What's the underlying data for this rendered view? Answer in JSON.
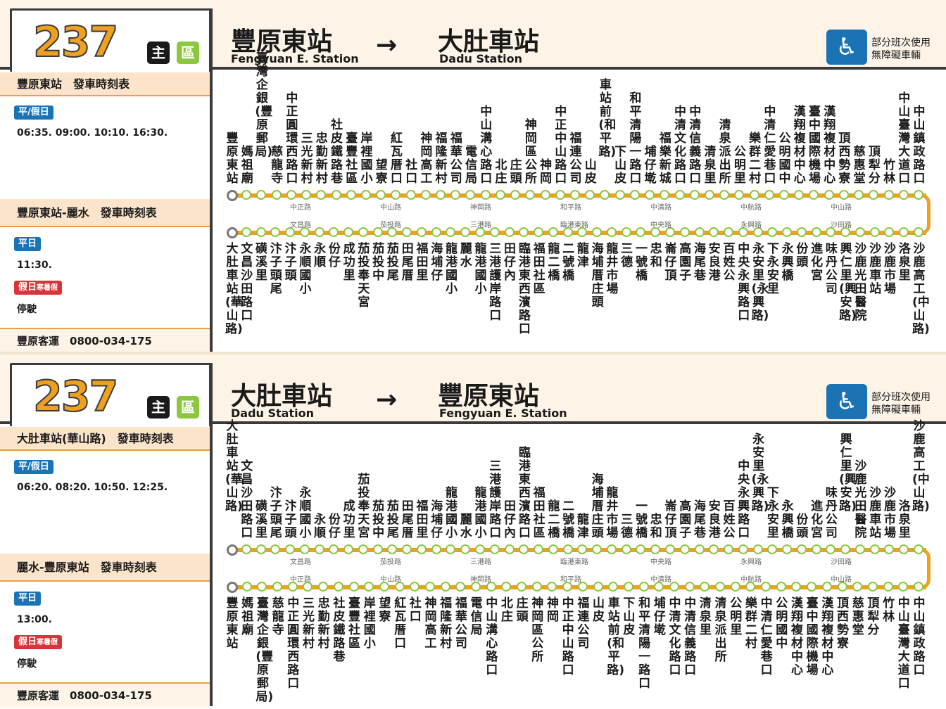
{
  "panels": [
    {
      "route_number": "237",
      "badge_main": "主",
      "badge_area": "區",
      "from_cn": "豐原東站",
      "from_en": "Fengyuan E. Station",
      "arrow": "→",
      "to_cn": "大肚車站",
      "to_en": "Dadu Station",
      "access_line1": "部分班次使用",
      "access_line2": "無障礙車輛",
      "sidebar": {
        "title1": "豐原東站　發車時刻表",
        "tag1": "平/假日",
        "times1": "06:35. 09:00. 10:10. 16:30.",
        "title2": "豐原東站-麗水　發車時刻表",
        "tag2": "平日",
        "times2": "11:30.",
        "tag3": "假日",
        "tag3_small": "寒暑假",
        "times3": "停駛",
        "company": "豐原客運　0800-034-175"
      },
      "top_stops": [
        "豐原東站",
        "媽祖廟",
        "臺灣企銀(豐原郵局)",
        "慈龍寺",
        "中正圓環西路口",
        "三光新村",
        "忠勤新村",
        "社皮鐵路巷",
        "臺豐社區",
        "岸裡國小",
        "望寮",
        "紅瓦厝口",
        "社口",
        "神岡高工",
        "福隆新村",
        "福華公司",
        "電信局",
        "中山溝心路口",
        "北庄",
        "庄頭",
        "神岡區公所",
        "神岡",
        "中正中山路口",
        "福連公司",
        "山皮",
        "車站前(和平路)",
        "下山皮",
        "和平清陽一路口",
        "埔仔墘",
        "福樂新城",
        "中清文化路口",
        "中清信義路口",
        "清泉里",
        "清泉派出所",
        "公明里",
        "樂群二村",
        "中清仁愛巷口",
        "公明國中",
        "漢翔複材中心",
        "臺中國際機場",
        "漢翔複材中心",
        "頂西勢寮",
        "慈惠堂",
        "頂犁分",
        "竹林",
        "中山臺灣大道口",
        "中山鎮政路口"
      ],
      "top_roads": [
        "中正路",
        "中山路",
        "神岡路",
        "和平路",
        "中清路",
        "中航路",
        "中山路"
      ],
      "bottom_roads": [
        "文昌路",
        "茄投路",
        "三港路",
        "臨港東路",
        "中央路",
        "永興路",
        "沙田路"
      ],
      "bottom_stops": [
        "大肚車站(華山路)",
        "文昌沙田路口",
        "磺溪里",
        "汴子頭尾",
        "汴子頭",
        "永順國小",
        "永順",
        "份仔",
        "成功里",
        "茄投奉天宮",
        "茄投中",
        "茄投尾",
        "田尾厝",
        "福田里",
        "海埔仔",
        "龍港國小",
        "麗水",
        "龍港國小",
        "三港護岸路口",
        "田仔內",
        "臨港東西濱路口",
        "福田社區",
        "龍二橋",
        "二號橋",
        "龍津",
        "海埔厝庄頭",
        "龍井市場",
        "三德",
        "一號橋",
        "忠和",
        "崙仔頂",
        "高園子",
        "海尾巷",
        "安良港",
        "百姓公",
        "中央永興路口",
        "永安里(永興路)",
        "下永安里",
        "永興橋",
        "份頭",
        "進化宮",
        "味丹公司",
        "興仁里(興安路)",
        "沙鹿光田醫院",
        "沙鹿車站",
        "沙鹿市場",
        "洛泉里",
        "沙鹿高工(中山路)"
      ]
    },
    {
      "route_number": "237",
      "badge_main": "主",
      "badge_area": "區",
      "from_cn": "大肚車站",
      "from_en": "Dadu Station",
      "arrow": "→",
      "to_cn": "豐原東站",
      "to_en": "Fengyuan E. Station",
      "access_line1": "部分班次使用",
      "access_line2": "無障礙車輛",
      "sidebar": {
        "title1": "大肚車站(華山路)　發車時刻表",
        "tag1": "平/假日",
        "times1": "06:20. 08:20. 10:50. 12:25.",
        "title2": "麗水-豐原東站　發車時刻表",
        "tag2": "平日",
        "times2": "13:00.",
        "tag3": "假日",
        "tag3_small": "寒暑假",
        "times3": "停駛",
        "company": "豐原客運　0800-034-175"
      },
      "top_stops": [
        "大肚車站(華山路)",
        "文昌沙田路口",
        "磺溪里",
        "汴子頭尾",
        "汴子頭",
        "永順國小",
        "永順",
        "份仔",
        "成功里",
        "茄投奉天宮",
        "茄投中",
        "茄投尾",
        "田尾厝",
        "福田里",
        "海埔仔",
        "龍港國小",
        "麗水",
        "龍港國小",
        "三港護岸路口",
        "田仔內",
        "臨港東西濱路口",
        "福田社區",
        "龍二橋",
        "二號橋",
        "龍津",
        "海埔厝庄頭",
        "龍井市場",
        "三德",
        "一號橋",
        "忠和",
        "崙仔頂",
        "高園子",
        "海尾巷",
        "安良港",
        "百姓公",
        "中央永興路口",
        "永安里(永興路)",
        "下永安里",
        "永興橋",
        "份頭",
        "進化宮",
        "味丹公司",
        "興仁里(興安路)",
        "沙鹿光田醫院",
        "沙鹿車站",
        "沙鹿市場",
        "洛泉里",
        "沙鹿高工(中山路)"
      ],
      "top_roads": [
        "文昌路",
        "茄投路",
        "三港路",
        "臨港東路",
        "中央路",
        "永興路",
        "沙田路"
      ],
      "bottom_roads": [
        "中正路",
        "中山路",
        "神岡路",
        "和平路",
        "中清路",
        "中航路",
        "中山路"
      ],
      "bottom_stops": [
        "豐原東站",
        "媽祖廟",
        "臺灣企銀(豐原郵局)",
        "慈龍寺",
        "中正圓環西路口",
        "三光新村",
        "忠勤新村",
        "社皮鐵路巷",
        "臺豐社區",
        "岸裡國小",
        "望寮",
        "紅瓦厝口",
        "社口",
        "神岡高工",
        "福隆新村",
        "福華公司",
        "電信局",
        "中山溝心路口",
        "北庄",
        "庄頭",
        "神岡區公所",
        "神岡",
        "中正中山路口",
        "福連公司",
        "山皮",
        "車站前(和平路)",
        "下山皮",
        "和平清陽一路口",
        "埔仔墘",
        "中清文化路口",
        "中清信義路口",
        "清泉里",
        "清泉派出所",
        "公明里",
        "樂群二村",
        "中清仁愛巷口",
        "公明國中",
        "漢翔複材中心",
        "臺中國際機場",
        "漢翔複材中心",
        "頂西勢寮",
        "慈惠堂",
        "頂犁分",
        "竹林",
        "中山臺灣大道口",
        "中山鎮政路口"
      ]
    }
  ]
}
